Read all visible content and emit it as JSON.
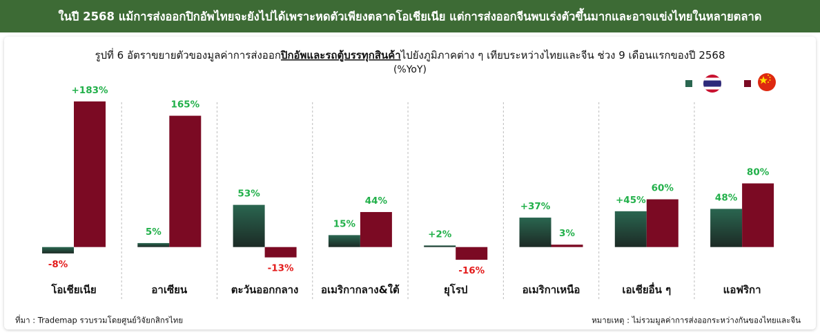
{
  "chart_data": {
    "type": "bar",
    "banner": "ในปี 2568 แม้การส่งออกปิกอัพไทยจะยังไปได้เพราะหดตัวเพียงตลาดโอเชียเนีย แต่การส่งออกจีนพบเร่งตัวขึ้นมากและอาจแข่งไทยในหลายตลาด",
    "title_parts": [
      "รูปที่ 6 อัตราขยายตัวของมูลค่าการส่งออก",
      "ปิกอัพและรถตู้บรรทุกสินค้า",
      "ไปยังภูมิภาคต่าง ๆ เทียบระหว่างไทยและจีน ช่วง 9 เดือนแรกของปี 2568"
    ],
    "subtitle": "(%YoY)",
    "categories": [
      "โอเชียเนีย",
      "อาเซียน",
      "ตะวันออกกลาง",
      "อเมริกากลาง&ใต้",
      "ยุโรป",
      "อเมริกาเหนือ",
      "เอเชียอื่น ๆ",
      "แอฟริกา"
    ],
    "series": [
      {
        "color": "#2a6650",
        "values": [
          -8,
          5,
          53,
          15,
          2,
          37,
          45,
          48
        ],
        "value_labels": [
          "-8%",
          "5%",
          "53%",
          "15%",
          "+2%",
          "+37%",
          "+45%",
          "48%"
        ]
      },
      {
        "color": "#7b0a23",
        "values": [
          183,
          165,
          -13,
          44,
          -16,
          3,
          60,
          80
        ],
        "value_labels": [
          "+183%",
          "165%",
          "-13%",
          "44%",
          "-16%",
          "3%",
          "60%",
          "80%"
        ]
      }
    ],
    "ylim": [
      -35,
      195
    ],
    "source": "ที่มา : Trademap รวบรวมโดยศูนย์วิจัยกสิกรไทย",
    "note": "หมายเหตุ : ไม่รวมมูลค่าการส่งออกระหว่างกันของไทยและจีน"
  }
}
